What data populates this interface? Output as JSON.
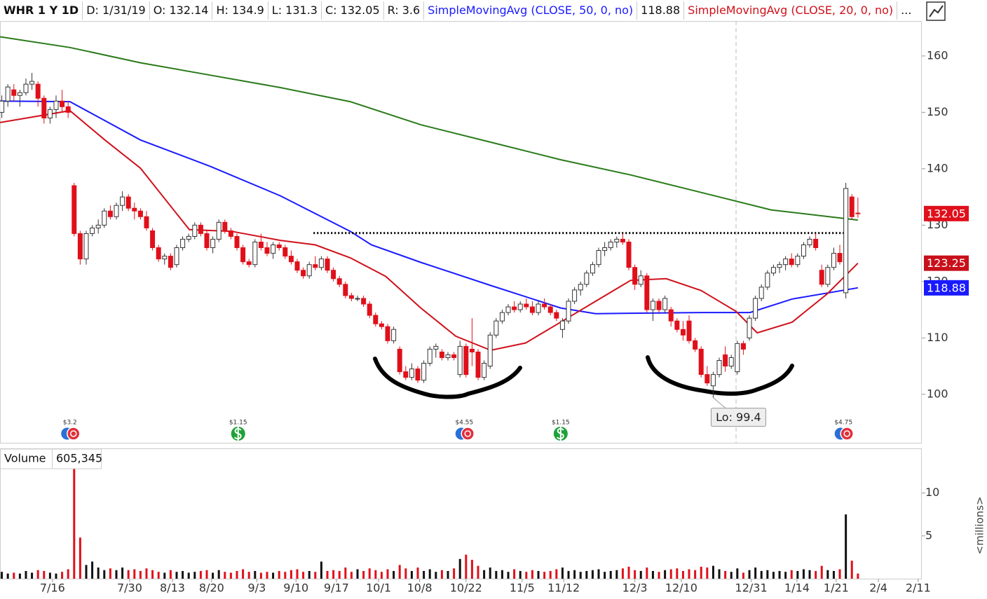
{
  "chart_data": {
    "type": "candlestick",
    "header": {
      "title": "WHR 1 Y 1D",
      "fields": [
        "D: 1/31/19",
        "O: 132.14",
        "H: 134.9",
        "L: 131.3",
        "C: 132.05",
        "R: 3.6"
      ],
      "more": "..."
    },
    "xlim": [
      0.7,
      153.6
    ],
    "xticks": [
      {
        "value": 9.4,
        "label": "7/16"
      },
      {
        "value": 22.2,
        "label": "7/30"
      },
      {
        "value": 29.3,
        "label": "8/13"
      },
      {
        "value": 35.8,
        "label": "8/20"
      },
      {
        "value": 43.3,
        "label": "9/3"
      },
      {
        "value": 49.8,
        "label": "9/10"
      },
      {
        "value": 56.5,
        "label": "9/17"
      },
      {
        "value": 63.5,
        "label": "10/1"
      },
      {
        "value": 70.3,
        "label": "10/8"
      },
      {
        "value": 78,
        "label": "10/22"
      },
      {
        "value": 87.3,
        "label": "11/5"
      },
      {
        "value": 94.2,
        "label": "11/12"
      },
      {
        "value": 106,
        "label": "12/3"
      },
      {
        "value": 113.7,
        "label": "12/10"
      },
      {
        "value": 125.3,
        "label": "12/31"
      },
      {
        "value": 132.9,
        "label": "1/14"
      },
      {
        "value": 139.4,
        "label": "1/21"
      },
      {
        "value": 146.4,
        "label": "2/4"
      },
      {
        "value": 153,
        "label": "2/11"
      }
    ],
    "ylim": [
      91.4,
      166.2
    ],
    "yticks": [
      100,
      110,
      120,
      130,
      140,
      150,
      160
    ],
    "up_color": "#ffffff",
    "down_color": "#e0101b",
    "candles": [
      [
        150,
        153,
        149,
        152
      ],
      [
        152,
        155,
        151,
        154.5
      ],
      [
        154,
        155,
        152,
        153
      ],
      [
        153,
        154,
        151,
        153.5
      ],
      [
        153.5,
        156,
        153,
        155
      ],
      [
        155,
        157,
        154,
        155.5
      ],
      [
        155,
        155.5,
        151,
        152.5
      ],
      [
        152.5,
        153,
        148,
        149
      ],
      [
        149,
        151,
        148,
        150.5
      ],
      [
        150.5,
        153,
        149,
        152
      ],
      [
        152,
        154,
        150,
        151
      ],
      [
        151,
        152,
        149,
        150
      ],
      [
        137,
        137.5,
        128,
        128.5
      ],
      [
        128.5,
        129,
        123,
        124
      ],
      [
        124,
        129,
        123,
        128.5
      ],
      [
        128.5,
        130,
        128,
        129.5
      ],
      [
        129.5,
        131,
        128.5,
        130
      ],
      [
        130,
        133,
        129.5,
        132.5
      ],
      [
        132.5,
        133.5,
        131,
        131.5
      ],
      [
        131.5,
        134,
        131,
        133.5
      ],
      [
        133.5,
        136,
        132.5,
        135
      ],
      [
        135,
        135.5,
        132.5,
        133
      ],
      [
        133,
        134,
        131,
        132.5
      ],
      [
        132.5,
        133,
        131,
        131.5
      ],
      [
        131.5,
        132.5,
        129,
        129.5
      ],
      [
        129,
        129.5,
        125.5,
        126
      ],
      [
        126,
        126.5,
        123.5,
        124
      ],
      [
        124,
        125,
        123,
        124.5
      ],
      [
        124.5,
        125,
        122,
        122.5
      ],
      [
        123,
        126.5,
        122.5,
        126
      ],
      [
        126,
        128,
        125.5,
        127.5
      ],
      [
        127.5,
        128.5,
        127,
        128
      ],
      [
        128,
        130.5,
        127.5,
        130
      ],
      [
        130,
        130.5,
        128,
        128.5
      ],
      [
        128.5,
        129,
        125.5,
        126
      ],
      [
        126,
        128,
        125,
        127.5
      ],
      [
        127.5,
        131,
        127,
        130.5
      ],
      [
        130.5,
        131,
        128.5,
        129
      ],
      [
        129,
        129.5,
        127.5,
        128
      ],
      [
        128,
        128.5,
        125.5,
        126
      ],
      [
        126,
        126.5,
        123,
        123.5
      ],
      [
        123.5,
        124,
        122.5,
        123
      ],
      [
        123,
        127.5,
        122.5,
        127
      ],
      [
        127,
        128.5,
        125.5,
        126
      ],
      [
        126,
        127,
        124.5,
        125
      ],
      [
        125,
        127,
        124,
        126.5
      ],
      [
        126.5,
        127,
        125.5,
        126
      ],
      [
        126,
        126.5,
        124,
        124.5
      ],
      [
        124.5,
        125.5,
        123,
        123.5
      ],
      [
        123.5,
        124,
        121.5,
        122
      ],
      [
        122,
        122.5,
        120.5,
        121
      ],
      [
        121,
        123.5,
        120.5,
        123
      ],
      [
        123,
        124.5,
        122,
        122.5
      ],
      [
        122.5,
        124.5,
        122,
        124
      ],
      [
        124,
        124.5,
        121.5,
        122
      ],
      [
        122,
        122.5,
        120,
        120.5
      ],
      [
        120.5,
        121,
        119,
        119.5
      ],
      [
        119.5,
        120,
        117,
        117.5
      ],
      [
        117.5,
        118,
        116.5,
        117
      ],
      [
        117,
        117.5,
        116.5,
        117
      ],
      [
        117,
        117.5,
        115.5,
        116
      ],
      [
        116,
        116.5,
        113.5,
        114
      ],
      [
        114,
        114.5,
        112,
        112.5
      ],
      [
        112.5,
        113,
        111.5,
        112
      ],
      [
        112,
        112.5,
        109,
        109.5
      ],
      [
        109.5,
        112,
        109,
        111.5
      ],
      [
        108,
        108.5,
        103.5,
        104
      ],
      [
        104,
        105,
        102.5,
        103
      ],
      [
        103,
        105.5,
        102.5,
        104.5
      ],
      [
        104.5,
        105,
        102,
        102.5
      ],
      [
        102.5,
        106,
        102,
        105.5
      ],
      [
        105.5,
        108.5,
        105,
        108
      ],
      [
        108,
        109,
        106.5,
        108.5
      ],
      [
        107.5,
        108,
        106,
        106.5
      ],
      [
        106.5,
        107.5,
        106,
        107
      ],
      [
        107,
        107.5,
        106,
        106.5
      ],
      [
        103.5,
        109.5,
        103,
        108.5
      ],
      [
        108.5,
        109,
        103,
        103.5
      ],
      [
        108,
        113.5,
        105,
        107.5
      ],
      [
        107.5,
        108,
        102.5,
        103
      ],
      [
        103,
        106,
        102.5,
        105.5
      ],
      [
        105,
        111,
        104.5,
        110.5
      ],
      [
        110.5,
        113.5,
        110,
        113
      ],
      [
        113,
        115,
        112.5,
        114.5
      ],
      [
        114.5,
        116,
        114,
        115.5
      ],
      [
        115.5,
        116.5,
        114.5,
        115
      ],
      [
        115,
        116.5,
        114.5,
        116
      ],
      [
        116,
        117,
        115,
        115.5
      ],
      [
        115.5,
        116.5,
        114,
        114.5
      ],
      [
        114.5,
        116.5,
        114,
        116
      ],
      [
        116,
        117,
        115,
        115.5
      ],
      [
        115.5,
        116,
        114,
        114.5
      ],
      [
        114.5,
        115,
        113,
        113.5
      ],
      [
        111.5,
        113.5,
        110,
        113
      ],
      [
        113,
        117,
        112.5,
        116.5
      ],
      [
        116.5,
        119,
        116,
        118.5
      ],
      [
        118.5,
        120,
        117.5,
        119.5
      ],
      [
        119.5,
        122,
        119,
        121.5
      ],
      [
        121.5,
        123.5,
        121,
        123
      ],
      [
        123,
        126,
        122.5,
        125.5
      ],
      [
        125.5,
        127,
        124.5,
        126
      ],
      [
        126,
        127.5,
        125.5,
        127
      ],
      [
        127,
        128,
        126,
        127.5
      ],
      [
        127.5,
        128.5,
        126.5,
        127
      ],
      [
        127,
        127.5,
        122,
        122.5
      ],
      [
        122.5,
        123,
        118.5,
        119.5
      ],
      [
        119.5,
        122,
        119,
        121
      ],
      [
        121,
        121.5,
        114.5,
        115
      ],
      [
        115,
        117,
        113,
        116.5
      ],
      [
        116.5,
        117,
        114.5,
        115
      ],
      [
        115,
        117.5,
        114.5,
        117
      ],
      [
        115,
        115.5,
        112,
        113
      ],
      [
        113,
        113.5,
        111,
        111.5
      ],
      [
        111.5,
        113,
        109.5,
        110.5
      ],
      [
        113,
        114,
        109,
        109.5
      ],
      [
        109.5,
        110,
        107.5,
        108
      ],
      [
        108,
        108.5,
        103,
        103.5
      ],
      [
        103.5,
        105,
        101.5,
        102
      ],
      [
        101.5,
        104,
        99.4,
        103.5
      ],
      [
        103.5,
        106.5,
        103,
        106
      ],
      [
        107,
        108.5,
        104,
        105
      ],
      [
        105,
        107,
        104.5,
        106.5
      ],
      [
        104,
        109.5,
        103.5,
        109
      ],
      [
        109,
        109.5,
        107,
        108
      ],
      [
        110,
        114,
        109.5,
        113.5
      ],
      [
        113.5,
        117.5,
        113,
        117
      ],
      [
        117,
        119.5,
        116.5,
        119
      ],
      [
        119,
        122,
        118.5,
        121.5
      ],
      [
        121.5,
        123,
        121,
        122.5
      ],
      [
        122.5,
        123.5,
        121.5,
        123
      ],
      [
        123,
        124.5,
        122,
        124
      ],
      [
        124,
        125,
        122.5,
        123
      ],
      [
        123,
        125,
        122.5,
        124.5
      ],
      [
        124.5,
        127,
        124,
        126.5
      ],
      [
        126.5,
        128,
        126,
        127.5
      ],
      [
        127.5,
        128.5,
        125.5,
        126
      ],
      [
        122,
        123,
        119,
        119.5
      ],
      [
        119.5,
        123,
        119,
        122.5
      ],
      [
        122.5,
        126,
        122,
        125
      ],
      [
        125,
        126.5,
        123,
        123.5
      ],
      [
        118,
        137.5,
        117,
        136.5
      ],
      [
        135,
        135.5,
        131,
        131.5
      ],
      [
        132.14,
        134.9,
        131.3,
        132.05
      ]
    ],
    "series": [
      {
        "color": "#2a7a1a",
        "x": [
          0.7,
          12.3,
          24,
          35.6,
          47.2,
          58.8,
          70.5,
          82.1,
          93.7,
          105.3,
          117,
          128.6,
          143
        ],
        "values": [
          163.4,
          161.5,
          158.8,
          156.6,
          154.4,
          151.9,
          147.8,
          144.7,
          141.6,
          138.9,
          135.8,
          132.7,
          130.9
        ]
      },
      {
        "name": "SimpleMovingAvg (CLOSE, 50, 0, no)",
        "header_value": 118.88,
        "color": "#1a1aff",
        "x": [
          0.7,
          12.3,
          24,
          35.6,
          47.2,
          58.8,
          62.3,
          70.5,
          82.1,
          93.7,
          99.5,
          117,
          125.1,
          132.1,
          143
        ],
        "values": [
          152,
          151.9,
          145.1,
          140.4,
          135.2,
          128.9,
          126.5,
          123.4,
          119.3,
          115.3,
          114.3,
          114.5,
          114.5,
          116.9,
          118.88
        ]
      },
      {
        "name": "SimpleMovingAvg (CLOSE, 20, 0, no)",
        "color": "#d0111b",
        "x": [
          0.7,
          12.3,
          18.1,
          24,
          32.1,
          39.1,
          47.2,
          53,
          58.8,
          64.7,
          70.5,
          76.3,
          82.1,
          87.9,
          93.7,
          99.5,
          105.3,
          111.2,
          117,
          122.8,
          126.3,
          132.1,
          137.9,
          143
        ],
        "values": [
          148.2,
          150.3,
          145.1,
          140.1,
          129.2,
          128.9,
          127.3,
          126.5,
          124.2,
          120.9,
          115.3,
          110.3,
          107.8,
          109.1,
          112.8,
          116.5,
          120.2,
          120.5,
          118.4,
          114.7,
          110.9,
          112.8,
          117.8,
          123.25
        ]
      }
    ],
    "price_tags": [
      {
        "value": 132.05,
        "color": "#e0101b"
      },
      {
        "value": 123.25,
        "color": "#c8101b"
      },
      {
        "value": 118.88,
        "color": "#1a1aff"
      }
    ],
    "resistance": {
      "value": 128.6,
      "x": [
        52.7,
        141.4
      ]
    },
    "low_annotation": {
      "text": "Lo: 99.4",
      "x": 119,
      "value": 99.4
    },
    "events": [
      {
        "x": 12.3,
        "label": "$3.2",
        "kind": "earnings"
      },
      {
        "x": 40.2,
        "label": "$1.15",
        "kind": "dividend"
      },
      {
        "x": 77.7,
        "label": "$4.55",
        "kind": "earnings"
      },
      {
        "x": 93.7,
        "label": "$1.15",
        "kind": "dividend"
      },
      {
        "x": 140.6,
        "label": "$4.75",
        "kind": "earnings"
      }
    ],
    "volume": {
      "label": "Volume",
      "current": "605,345",
      "unit_label": "<millions>",
      "ylim": [
        0,
        14.8
      ],
      "yticks": [
        5,
        10
      ],
      "values": [
        0.8,
        0.6,
        0.7,
        0.6,
        0.9,
        0.7,
        1.0,
        0.9,
        0.7,
        0.6,
        0.8,
        1.1,
        12.8,
        4.8,
        1.6,
        2.0,
        1.3,
        1.0,
        1.2,
        1.0,
        1.3,
        1.0,
        1.1,
        0.9,
        1.2,
        1.0,
        0.8,
        0.7,
        1.0,
        0.8,
        0.9,
        0.7,
        0.8,
        0.9,
        1.0,
        0.7,
        1.0,
        0.8,
        0.7,
        0.9,
        1.1,
        0.8,
        0.9,
        0.7,
        0.8,
        0.7,
        0.9,
        0.8,
        1.0,
        1.1,
        0.8,
        0.9,
        0.8,
        2.0,
        0.9,
        1.0,
        0.9,
        1.3,
        0.8,
        1.1,
        0.9,
        1.2,
        1.0,
        0.8,
        1.1,
        0.9,
        1.6,
        1.2,
        0.9,
        1.3,
        0.9,
        1.1,
        0.8,
        1.0,
        0.9,
        1.2,
        2.3,
        2.8,
        2.2,
        1.5,
        1.0,
        1.3,
        0.9,
        1.0,
        0.8,
        1.1,
        0.9,
        0.8,
        1.0,
        0.9,
        0.8,
        0.9,
        1.1,
        1.3,
        0.9,
        1.0,
        0.8,
        0.9,
        1.0,
        1.1,
        0.8,
        0.9,
        1.0,
        1.2,
        1.4,
        1.0,
        0.9,
        1.3,
        0.9,
        0.8,
        1.0,
        1.1,
        1.2,
        0.9,
        1.1,
        1.0,
        1.4,
        1.3,
        1.5,
        1.1,
        0.9,
        0.8,
        1.2,
        0.7,
        1.0,
        1.3,
        0.9,
        1.0,
        0.8,
        0.9,
        0.8,
        1.0,
        0.9,
        1.1,
        1.0,
        0.9,
        1.5,
        1.0,
        0.9,
        1.1,
        7.5,
        2.1,
        0.6
      ]
    }
  }
}
